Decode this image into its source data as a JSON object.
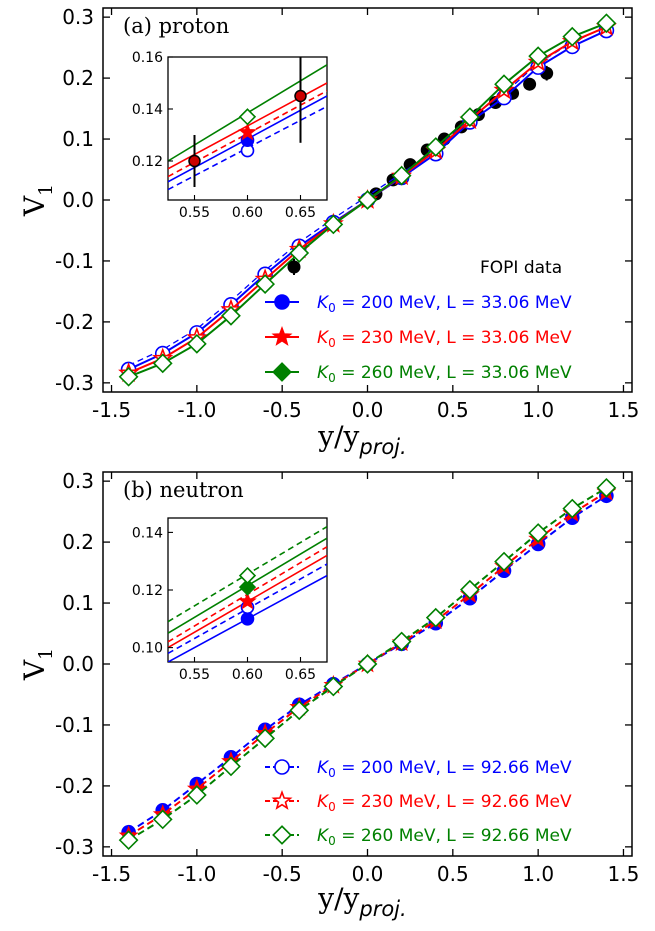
{
  "chart_data": [
    {
      "type": "line",
      "panel_label": "(a) proton",
      "xlabel": "y/y",
      "xlabel_sub": "proj.",
      "ylabel": "V",
      "ylabel_sub": "1",
      "xlim": [
        -1.55,
        1.55
      ],
      "ylim": [
        -0.315,
        0.315
      ],
      "xticks": [
        "-1.5",
        "-1.0",
        "-0.5",
        "0.0",
        "0.5",
        "1.0",
        "1.5"
      ],
      "yticks": [
        "-0.3",
        "-0.2",
        "-0.1",
        "0.0",
        "0.1",
        "0.2",
        "0.3"
      ],
      "legend_position": "lower-right",
      "series": [
        {
          "name": "FOPI data",
          "kind": "data",
          "color": "#000000",
          "x": [
            0.05,
            0.15,
            0.25,
            0.35,
            0.45,
            0.55,
            0.65,
            0.75,
            0.85,
            0.95,
            1.05
          ],
          "y": [
            0.01,
            0.033,
            0.058,
            0.082,
            0.1,
            0.12,
            0.14,
            0.16,
            0.175,
            0.19,
            0.208
          ],
          "yerr": [
            0.004,
            0.004,
            0.005,
            0.006,
            0.006,
            0.007,
            0.007,
            0.008,
            0.009,
            0.01,
            0.012
          ]
        },
        {
          "name": "K0 = 200 MeV, L = 33.06 MeV",
          "kind": "model",
          "color": "#0000ff",
          "marker": "circle",
          "x": [
            -1.4,
            -1.2,
            -1.0,
            -0.8,
            -0.6,
            -0.4,
            -0.2,
            0.0,
            0.2,
            0.4,
            0.6,
            0.8,
            1.0,
            1.2,
            1.4
          ],
          "y": [
            -0.278,
            -0.252,
            -0.218,
            -0.172,
            -0.122,
            -0.076,
            -0.037,
            0.0,
            0.037,
            0.076,
            0.128,
            0.168,
            0.218,
            0.252,
            0.278
          ]
        },
        {
          "name": "K0 = 230 MeV, L = 33.06 MeV",
          "kind": "model",
          "color": "#ff0000",
          "marker": "star",
          "x": [
            -1.4,
            -1.2,
            -1.0,
            -0.8,
            -0.6,
            -0.4,
            -0.2,
            0.0,
            0.2,
            0.4,
            0.6,
            0.8,
            1.0,
            1.2,
            1.4
          ],
          "y": [
            -0.284,
            -0.26,
            -0.226,
            -0.18,
            -0.13,
            -0.081,
            -0.039,
            0.0,
            0.039,
            0.081,
            0.131,
            0.18,
            0.226,
            0.26,
            0.284
          ]
        },
        {
          "name": "K0 = 260 MeV, L = 33.06 MeV",
          "kind": "model",
          "color": "#008000",
          "marker": "diamond",
          "x": [
            -1.4,
            -1.2,
            -1.0,
            -0.8,
            -0.6,
            -0.4,
            -0.2,
            0.0,
            0.2,
            0.4,
            0.6,
            0.8,
            1.0,
            1.2,
            1.4
          ],
          "y": [
            -0.29,
            -0.268,
            -0.236,
            -0.19,
            -0.138,
            -0.087,
            -0.04,
            0.0,
            0.04,
            0.087,
            0.136,
            0.19,
            0.236,
            0.268,
            0.29
          ]
        }
      ],
      "inset": {
        "xlim": [
          0.525,
          0.675
        ],
        "ylim": [
          0.105,
          0.16
        ],
        "xticks": [
          "0.55",
          "0.60",
          "0.65"
        ],
        "yticks": [
          "0.12",
          "0.14",
          "0.16"
        ],
        "fopi": {
          "x": [
            0.55,
            0.65
          ],
          "y": [
            0.12,
            0.145
          ],
          "yerr": [
            0.01,
            0.018
          ]
        },
        "points": [
          {
            "series": "K0 = 200 MeV",
            "color": "#0000ff",
            "x": 0.6,
            "y": 0.124,
            "marker": "circle",
            "fill": "none"
          },
          {
            "series": "K0 = 200 MeV",
            "color": "#0000ff",
            "x": 0.6,
            "y": 0.128,
            "marker": "circle",
            "fill": "solid"
          },
          {
            "series": "K0 = 230 MeV",
            "color": "#ff0000",
            "x": 0.6,
            "y": 0.131,
            "marker": "star",
            "fill": "solid"
          },
          {
            "series": "K0 = 260 MeV",
            "color": "#008000",
            "x": 0.6,
            "y": 0.137,
            "marker": "diamond",
            "fill": "none"
          }
        ],
        "lines": [
          {
            "color": "#0000ff",
            "dash": true,
            "y0": 0.109,
            "y1": 0.141
          },
          {
            "color": "#0000ff",
            "dash": false,
            "y0": 0.112,
            "y1": 0.145
          },
          {
            "color": "#ff0000",
            "dash": true,
            "y0": 0.114,
            "y1": 0.147
          },
          {
            "color": "#ff0000",
            "dash": false,
            "y0": 0.117,
            "y1": 0.15
          },
          {
            "color": "#008000",
            "dash": false,
            "y0": 0.12,
            "y1": 0.157
          }
        ]
      }
    },
    {
      "type": "line",
      "panel_label": "(b) neutron",
      "xlabel": "y/y",
      "xlabel_sub": "proj.",
      "ylabel": "V",
      "ylabel_sub": "1",
      "xlim": [
        -1.55,
        1.55
      ],
      "ylim": [
        -0.315,
        0.315
      ],
      "xticks": [
        "-1.5",
        "-1.0",
        "-0.5",
        "0.0",
        "0.5",
        "1.0",
        "1.5"
      ],
      "yticks": [
        "-0.3",
        "-0.2",
        "-0.1",
        "0.0",
        "0.1",
        "0.2",
        "0.3"
      ],
      "legend_position": "lower-right",
      "series": [
        {
          "name": "K0 = 200 MeV, L = 92.66 MeV",
          "kind": "model",
          "color": "#0000ff",
          "marker": "circle",
          "x": [
            -1.4,
            -1.2,
            -1.0,
            -0.8,
            -0.6,
            -0.4,
            -0.2,
            0.0,
            0.2,
            0.4,
            0.6,
            0.8,
            1.0,
            1.2,
            1.4
          ],
          "y": [
            -0.276,
            -0.24,
            -0.197,
            -0.153,
            -0.108,
            -0.067,
            -0.033,
            0.0,
            0.033,
            0.067,
            0.108,
            0.153,
            0.197,
            0.24,
            0.276
          ]
        },
        {
          "name": "K0 = 230 MeV, L = 92.66 MeV",
          "kind": "model",
          "color": "#ff0000",
          "marker": "star",
          "x": [
            -1.4,
            -1.2,
            -1.0,
            -0.8,
            -0.6,
            -0.4,
            -0.2,
            0.0,
            0.2,
            0.4,
            0.6,
            0.8,
            1.0,
            1.2,
            1.4
          ],
          "y": [
            -0.282,
            -0.247,
            -0.205,
            -0.16,
            -0.114,
            -0.071,
            -0.035,
            0.0,
            0.035,
            0.071,
            0.114,
            0.16,
            0.205,
            0.247,
            0.282
          ]
        },
        {
          "name": "K0 = 260 MeV, L = 92.66 MeV",
          "kind": "model",
          "color": "#008000",
          "marker": "diamond",
          "x": [
            -1.4,
            -1.2,
            -1.0,
            -0.8,
            -0.6,
            -0.4,
            -0.2,
            0.0,
            0.2,
            0.4,
            0.6,
            0.8,
            1.0,
            1.2,
            1.4
          ],
          "y": [
            -0.289,
            -0.255,
            -0.215,
            -0.168,
            -0.122,
            -0.076,
            -0.037,
            0.0,
            0.037,
            0.076,
            0.122,
            0.168,
            0.215,
            0.255,
            0.289
          ]
        }
      ],
      "inset": {
        "xlim": [
          0.525,
          0.675
        ],
        "ylim": [
          0.095,
          0.145
        ],
        "xticks": [
          "0.55",
          "0.60",
          "0.65"
        ],
        "yticks": [
          "0.10",
          "0.12",
          "0.14"
        ],
        "points": [
          {
            "series": "K0 = 200 MeV",
            "color": "#0000ff",
            "x": 0.6,
            "y": 0.11,
            "marker": "circle",
            "fill": "solid"
          },
          {
            "series": "K0 = 200 MeV",
            "color": "#0000ff",
            "x": 0.6,
            "y": 0.114,
            "marker": "circle",
            "fill": "none"
          },
          {
            "series": "K0 = 230 MeV",
            "color": "#ff0000",
            "x": 0.6,
            "y": 0.116,
            "marker": "star",
            "fill": "solid"
          },
          {
            "series": "K0 = 260 MeV",
            "color": "#008000",
            "x": 0.6,
            "y": 0.121,
            "marker": "diamond",
            "fill": "solid"
          },
          {
            "series": "K0 = 260 MeV",
            "color": "#008000",
            "x": 0.6,
            "y": 0.125,
            "marker": "diamond",
            "fill": "none"
          }
        ],
        "lines": [
          {
            "color": "#0000ff",
            "dash": false,
            "y0": 0.095,
            "y1": 0.125
          },
          {
            "color": "#0000ff",
            "dash": true,
            "y0": 0.098,
            "y1": 0.129
          },
          {
            "color": "#ff0000",
            "dash": false,
            "y0": 0.1,
            "y1": 0.132
          },
          {
            "color": "#ff0000",
            "dash": true,
            "y0": 0.102,
            "y1": 0.135
          },
          {
            "color": "#008000",
            "dash": false,
            "y0": 0.105,
            "y1": 0.138
          },
          {
            "color": "#008000",
            "dash": true,
            "y0": 0.109,
            "y1": 0.142
          }
        ]
      }
    }
  ],
  "legends": [
    {
      "items": [
        {
          "kind": "data",
          "color": "#000000",
          "text": "FOPI data"
        },
        {
          "kind": "model",
          "color": "#0000ff",
          "marker": "circle",
          "fill": "solid",
          "dash": false,
          "symbol": "K",
          "sub": "0",
          "rest": " = 200 MeV, L = 33.06 MeV"
        },
        {
          "kind": "model",
          "color": "#ff0000",
          "marker": "star",
          "fill": "solid",
          "dash": false,
          "symbol": "K",
          "sub": "0",
          "rest": " = 230 MeV, L = 33.06 MeV"
        },
        {
          "kind": "model",
          "color": "#008000",
          "marker": "diamond",
          "fill": "solid",
          "dash": false,
          "symbol": "K",
          "sub": "0",
          "rest": " = 260 MeV, L = 33.06 MeV"
        }
      ]
    },
    {
      "items": [
        {
          "kind": "model",
          "color": "#0000ff",
          "marker": "circle",
          "fill": "none",
          "dash": true,
          "symbol": "K",
          "sub": "0",
          "rest": " = 200 MeV, L = 92.66 MeV"
        },
        {
          "kind": "model",
          "color": "#ff0000",
          "marker": "star",
          "fill": "none",
          "dash": true,
          "symbol": "K",
          "sub": "0",
          "rest": " = 230 MeV, L = 92.66 MeV"
        },
        {
          "kind": "model",
          "color": "#008000",
          "marker": "diamond",
          "fill": "none",
          "dash": true,
          "symbol": "K",
          "sub": "0",
          "rest": " = 260 MeV, L = 92.66 MeV"
        }
      ]
    }
  ]
}
